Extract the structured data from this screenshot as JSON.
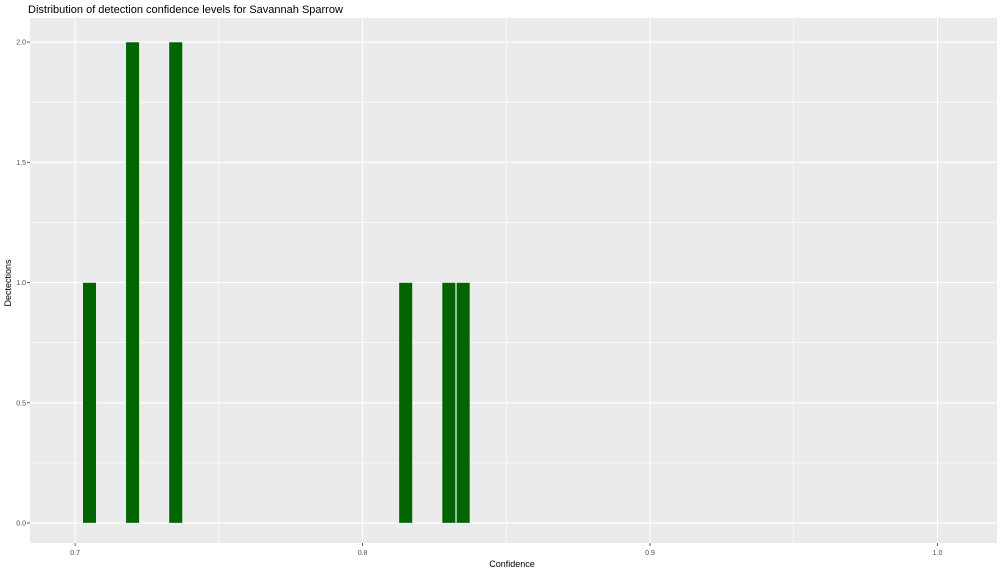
{
  "chart_data": {
    "type": "bar",
    "title": "Distribution of detection confidence levels for Savannah Sparrow",
    "xlabel": "Confidence",
    "ylabel": "Dectections",
    "xlim": [
      0.6843,
      1.0207
    ],
    "ylim": [
      -0.083,
      2.1
    ],
    "binwidth": 0.0047,
    "bins": [
      {
        "x": 0.705,
        "count": 1
      },
      {
        "x": 0.72,
        "count": 2
      },
      {
        "x": 0.735,
        "count": 2
      },
      {
        "x": 0.815,
        "count": 1
      },
      {
        "x": 0.83,
        "count": 1
      },
      {
        "x": 0.835,
        "count": 1
      }
    ],
    "x_ticks": [
      0.7,
      0.8,
      0.9,
      1.0
    ],
    "x_tick_labels": [
      "0.7",
      "0.8",
      "0.9",
      "1.0"
    ],
    "y_ticks": [
      0,
      0.5,
      1,
      1.5,
      2
    ],
    "y_tick_labels": [
      "0.0",
      "0.5",
      "1.0",
      "1.5",
      "2.0"
    ],
    "grid": true,
    "colors": {
      "bar": "#006400",
      "panel": "#EBEBEB",
      "grid": "#FFFFFF"
    }
  }
}
